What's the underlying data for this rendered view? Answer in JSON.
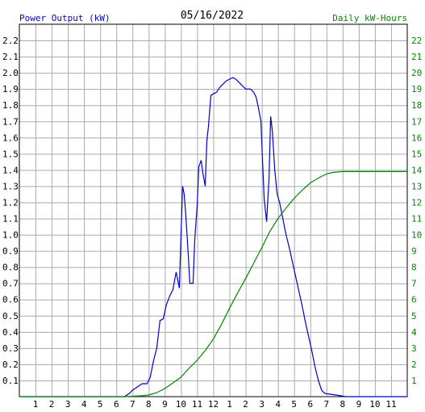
{
  "chart_data": {
    "type": "line",
    "title": "05/16/2022",
    "ylabel_left": "Power Output (kW)",
    "ylabel_right": "Daily kW-Hours",
    "colors": {
      "power": "#0000cc",
      "energy": "#008800",
      "grid": "#aaaaaa",
      "axis_text": "#000000",
      "right_axis_text": "#008800"
    },
    "x_ticks": [
      "1",
      "2",
      "3",
      "4",
      "5",
      "6",
      "7",
      "8",
      "9",
      "10",
      "11",
      "12",
      "1",
      "2",
      "3",
      "4",
      "5",
      "6",
      "7",
      "8",
      "9",
      "10",
      "11"
    ],
    "x_range_hours": [
      0,
      24
    ],
    "y_left_ticks": [
      "0.1",
      "0.2",
      "0.3",
      "0.4",
      "0.5",
      "0.6",
      "0.7",
      "0.8",
      "0.9",
      "1.0",
      "1.1",
      "1.2",
      "1.3",
      "1.4",
      "1.5",
      "1.6",
      "1.7",
      "1.8",
      "1.9",
      "2.0",
      "2.1",
      "2.2"
    ],
    "y_left_range": [
      0,
      2.3
    ],
    "y_right_ticks": [
      "1",
      "2",
      "3",
      "4",
      "5",
      "6",
      "7",
      "8",
      "9",
      "10",
      "11",
      "12",
      "13",
      "14",
      "15",
      "16",
      "17",
      "18",
      "19",
      "20",
      "21",
      "22"
    ],
    "y_right_range": [
      0,
      23
    ],
    "series": [
      {
        "name": "Power Output (kW)",
        "axis": "left",
        "points": [
          [
            0,
            0
          ],
          [
            6.5,
            0
          ],
          [
            6.8,
            0.02
          ],
          [
            7.0,
            0.04
          ],
          [
            7.3,
            0.06
          ],
          [
            7.6,
            0.08
          ],
          [
            7.9,
            0.08
          ],
          [
            8.1,
            0.12
          ],
          [
            8.3,
            0.22
          ],
          [
            8.5,
            0.3
          ],
          [
            8.7,
            0.47
          ],
          [
            8.9,
            0.48
          ],
          [
            9.1,
            0.57
          ],
          [
            9.3,
            0.62
          ],
          [
            9.5,
            0.66
          ],
          [
            9.7,
            0.77
          ],
          [
            9.8,
            0.72
          ],
          [
            9.9,
            0.67
          ],
          [
            10.1,
            1.3
          ],
          [
            10.2,
            1.25
          ],
          [
            10.3,
            1.12
          ],
          [
            10.45,
            0.88
          ],
          [
            10.55,
            0.7
          ],
          [
            10.75,
            0.7
          ],
          [
            10.85,
            0.97
          ],
          [
            11.0,
            1.18
          ],
          [
            11.1,
            1.42
          ],
          [
            11.25,
            1.46
          ],
          [
            11.35,
            1.38
          ],
          [
            11.5,
            1.3
          ],
          [
            11.6,
            1.58
          ],
          [
            11.7,
            1.67
          ],
          [
            11.85,
            1.86
          ],
          [
            12.0,
            1.87
          ],
          [
            12.2,
            1.88
          ],
          [
            12.4,
            1.91
          ],
          [
            12.6,
            1.93
          ],
          [
            12.8,
            1.95
          ],
          [
            13.0,
            1.96
          ],
          [
            13.2,
            1.97
          ],
          [
            13.4,
            1.96
          ],
          [
            13.6,
            1.94
          ],
          [
            13.8,
            1.92
          ],
          [
            14.0,
            1.9
          ],
          [
            14.3,
            1.9
          ],
          [
            14.5,
            1.88
          ],
          [
            14.65,
            1.85
          ],
          [
            14.8,
            1.78
          ],
          [
            14.95,
            1.7
          ],
          [
            15.05,
            1.45
          ],
          [
            15.15,
            1.22
          ],
          [
            15.3,
            1.08
          ],
          [
            15.45,
            1.35
          ],
          [
            15.55,
            1.73
          ],
          [
            15.65,
            1.64
          ],
          [
            15.8,
            1.4
          ],
          [
            15.95,
            1.25
          ],
          [
            16.1,
            1.2
          ],
          [
            16.3,
            1.1
          ],
          [
            16.5,
            1.0
          ],
          [
            16.7,
            0.92
          ],
          [
            16.9,
            0.83
          ],
          [
            17.1,
            0.74
          ],
          [
            17.3,
            0.65
          ],
          [
            17.5,
            0.56
          ],
          [
            17.7,
            0.46
          ],
          [
            17.9,
            0.37
          ],
          [
            18.1,
            0.28
          ],
          [
            18.3,
            0.18
          ],
          [
            18.5,
            0.1
          ],
          [
            18.7,
            0.04
          ],
          [
            18.9,
            0.02
          ],
          [
            19.6,
            0.01
          ],
          [
            20.2,
            0
          ],
          [
            24,
            0
          ]
        ]
      },
      {
        "name": "Daily kW-Hours",
        "axis": "right",
        "points": [
          [
            0,
            0
          ],
          [
            6.5,
            0
          ],
          [
            7.5,
            0.05
          ],
          [
            8.0,
            0.1
          ],
          [
            8.5,
            0.25
          ],
          [
            9.0,
            0.5
          ],
          [
            9.5,
            0.85
          ],
          [
            10.0,
            1.2
          ],
          [
            10.5,
            1.75
          ],
          [
            11.0,
            2.25
          ],
          [
            11.5,
            2.85
          ],
          [
            12.0,
            3.55
          ],
          [
            12.5,
            4.45
          ],
          [
            13.0,
            5.45
          ],
          [
            13.5,
            6.4
          ],
          [
            14.0,
            7.3
          ],
          [
            14.5,
            8.25
          ],
          [
            15.0,
            9.2
          ],
          [
            15.5,
            10.2
          ],
          [
            16.0,
            11.0
          ],
          [
            16.5,
            11.65
          ],
          [
            17.0,
            12.25
          ],
          [
            17.5,
            12.75
          ],
          [
            18.0,
            13.2
          ],
          [
            18.5,
            13.5
          ],
          [
            19.0,
            13.75
          ],
          [
            19.4,
            13.85
          ],
          [
            20.0,
            13.9
          ],
          [
            24,
            13.9
          ]
        ]
      }
    ],
    "grid": true
  }
}
